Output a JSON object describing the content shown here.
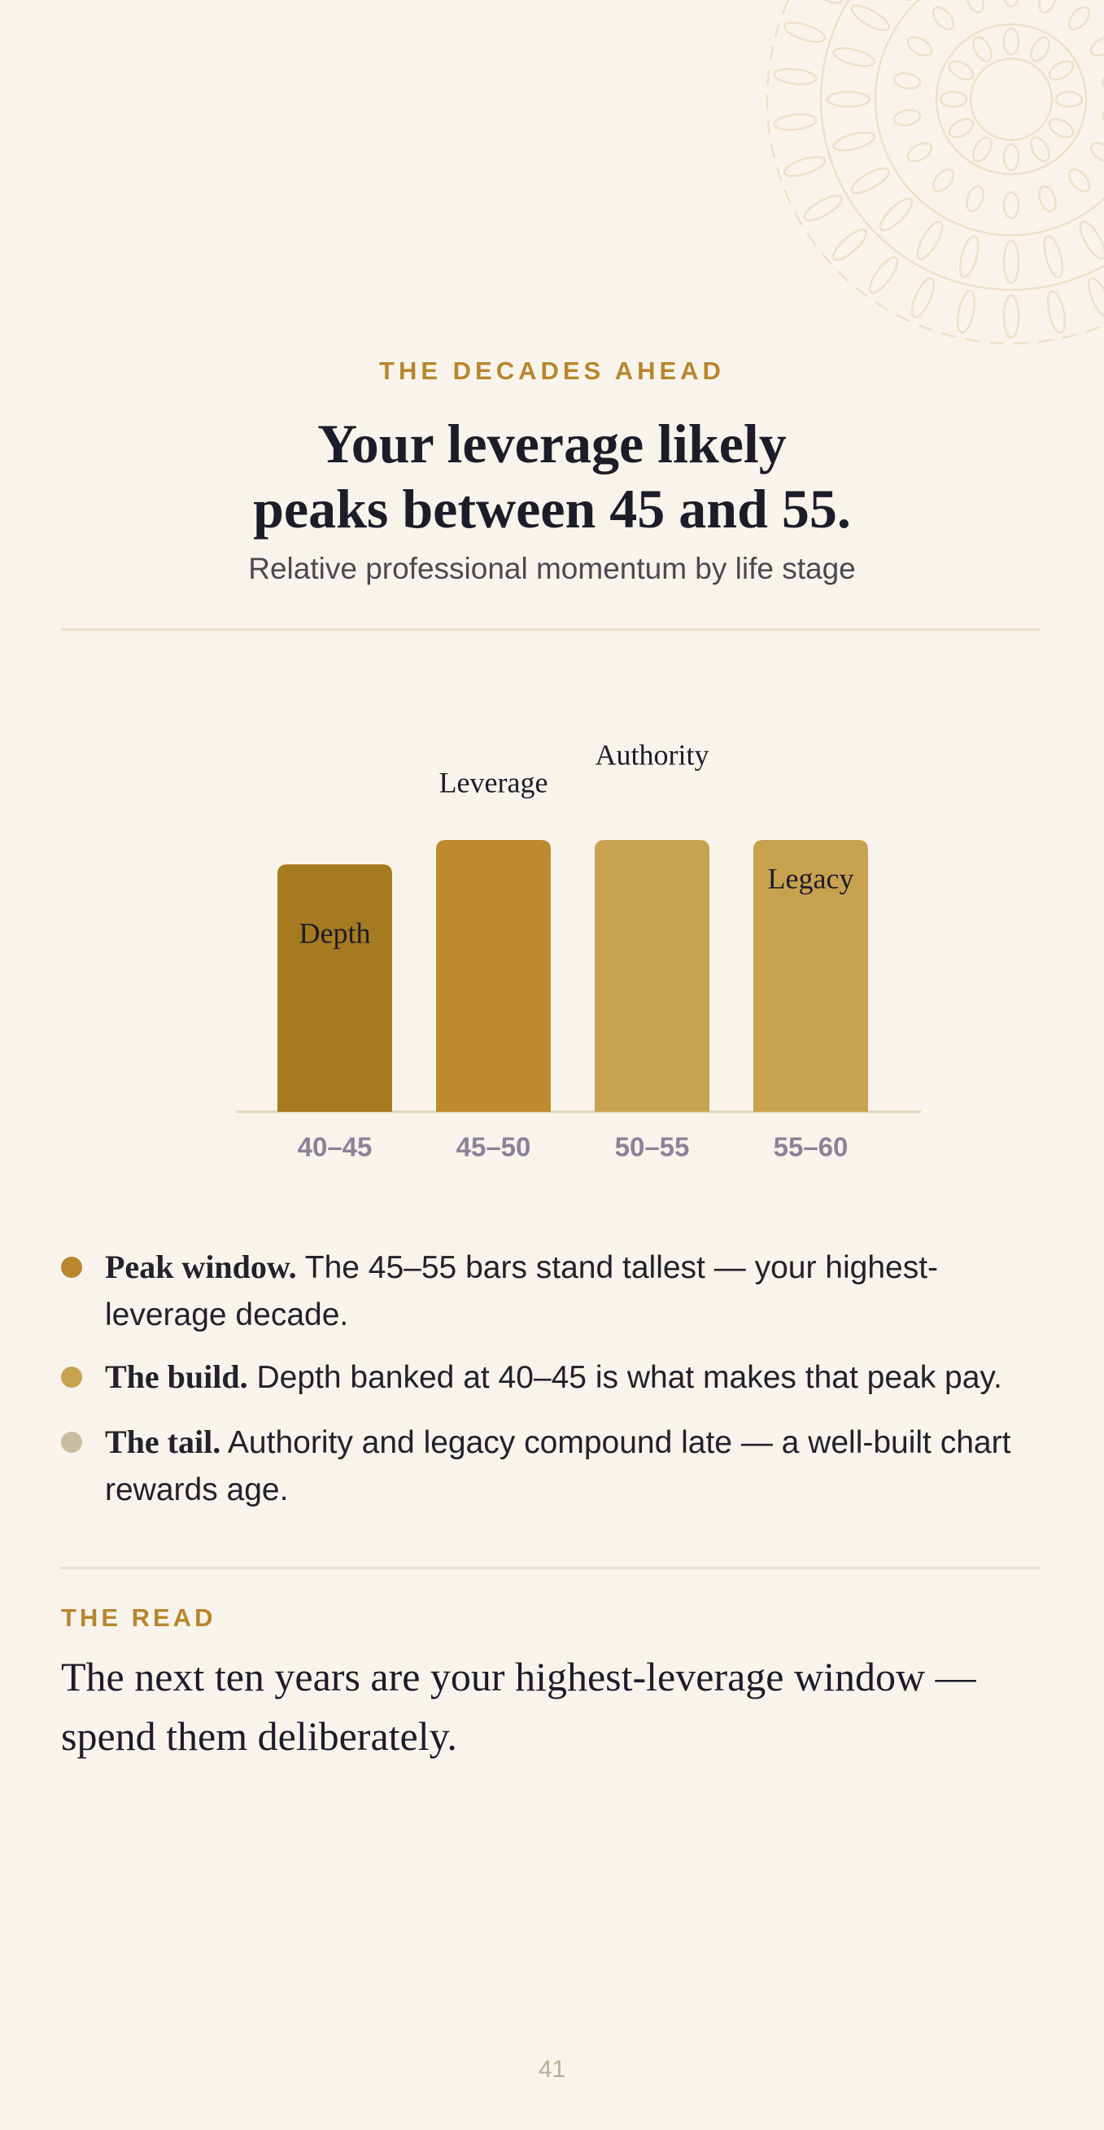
{
  "header": {
    "kicker": "THE DECADES AHEAD"
  },
  "chart_data": {
    "type": "bar",
    "title": [
      "Your leverage likely",
      "peaks between 45 and 55."
    ],
    "subtitle": "Relative professional momentum by life stage",
    "categories": [
      "40–45",
      "45–50",
      "50–55",
      "55–60"
    ],
    "values": [
      91,
      100,
      100,
      100
    ],
    "bar_labels": [
      "Depth",
      "Leverage",
      "Authority",
      "Legacy"
    ],
    "colors": [
      "#a67a1f",
      "#bd8a2e",
      "#c9a250",
      "#c9a250"
    ],
    "ylim": [
      0,
      100
    ]
  },
  "notes": [
    {
      "lead": "Peak window.",
      "text": "The 45–55 bars stand tallest — your highest-leverage decade.",
      "color": "#b8862e"
    },
    {
      "lead": "The build.",
      "text": "Depth banked at 40–45 is what makes that peak pay.",
      "color": "#c9a250"
    },
    {
      "lead": "The tail.",
      "text": "Authority and legacy compound late — a well-built chart rewards age.",
      "color": "#c8bda0"
    }
  ],
  "read": {
    "label": "THE READ",
    "text": "The next ten years are your highest-leverage window — spend them deliberately."
  },
  "page_number": "41"
}
